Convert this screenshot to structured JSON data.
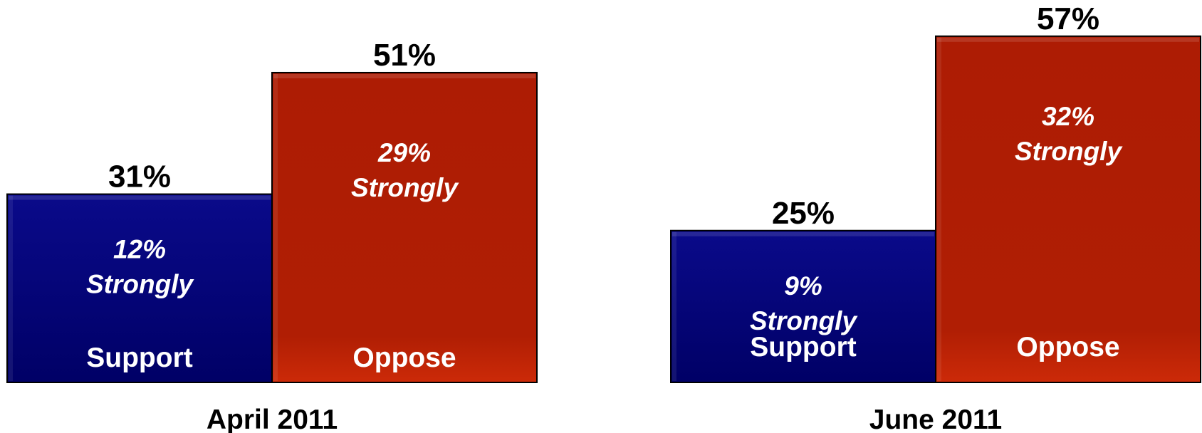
{
  "chart_data": {
    "type": "bar",
    "colors": {
      "support": "#00007a",
      "oppose": "#a81b03"
    },
    "panels": [
      {
        "period": "April 2011",
        "bars": [
          {
            "category": "Support",
            "value": 31,
            "value_label": "31%",
            "strongly_value": 12,
            "strongly_pct": "12%",
            "strongly_word": "Strongly",
            "color": "support"
          },
          {
            "category": "Oppose",
            "value": 51,
            "value_label": "51%",
            "strongly_value": 29,
            "strongly_pct": "29%",
            "strongly_word": "Strongly",
            "color": "oppose"
          }
        ]
      },
      {
        "period": "June 2011",
        "bars": [
          {
            "category": "Support",
            "value": 25,
            "value_label": "25%",
            "strongly_value": 9,
            "strongly_pct": "9%",
            "strongly_word": "Strongly",
            "color": "support"
          },
          {
            "category": "Oppose",
            "value": 57,
            "value_label": "57%",
            "strongly_value": 32,
            "strongly_pct": "32%",
            "strongly_word": "Strongly",
            "color": "oppose"
          }
        ]
      }
    ],
    "ylim": [
      0,
      57
    ]
  }
}
